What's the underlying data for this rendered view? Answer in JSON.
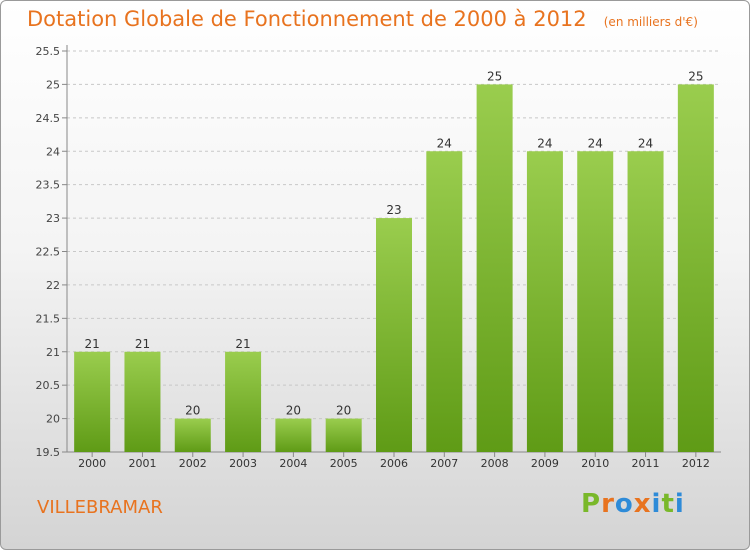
{
  "header": {
    "title": "Dotation Globale de Fonctionnement de 2000 à 2012",
    "unit": "(en milliers d'€)"
  },
  "footer": {
    "commune": "VILLEBRAMAR",
    "logo_text": "Proxiti"
  },
  "colors": {
    "title": "#e8731f",
    "bar_top": "#9acd4e",
    "bar_bottom": "#5f9b16",
    "logo_blue": "#2e8bd8",
    "logo_green": "#79b82a",
    "logo_orange": "#e8731f"
  },
  "chart_data": {
    "type": "bar",
    "title": "Dotation Globale de Fonctionnement de 2000 à 2012",
    "subtitle": "(en milliers d'€)",
    "categories": [
      "2000",
      "2001",
      "2002",
      "2003",
      "2004",
      "2005",
      "2006",
      "2007",
      "2008",
      "2009",
      "2010",
      "2011",
      "2012"
    ],
    "values": [
      21,
      21,
      20,
      21,
      20,
      20,
      23,
      24,
      25,
      24,
      24,
      24,
      25
    ],
    "data_labels": [
      "21",
      "21",
      "20",
      "21",
      "20",
      "20",
      "23",
      "24",
      "25",
      "24",
      "24",
      "24",
      "25"
    ],
    "ylim": [
      19.5,
      25.5
    ],
    "yticks": [
      "19.5",
      "20",
      "20.5",
      "21",
      "21.5",
      "22",
      "22.5",
      "23",
      "23.5",
      "24",
      "24.5",
      "25",
      "25.5"
    ],
    "xlabel": "",
    "ylabel": "",
    "grid": true
  }
}
